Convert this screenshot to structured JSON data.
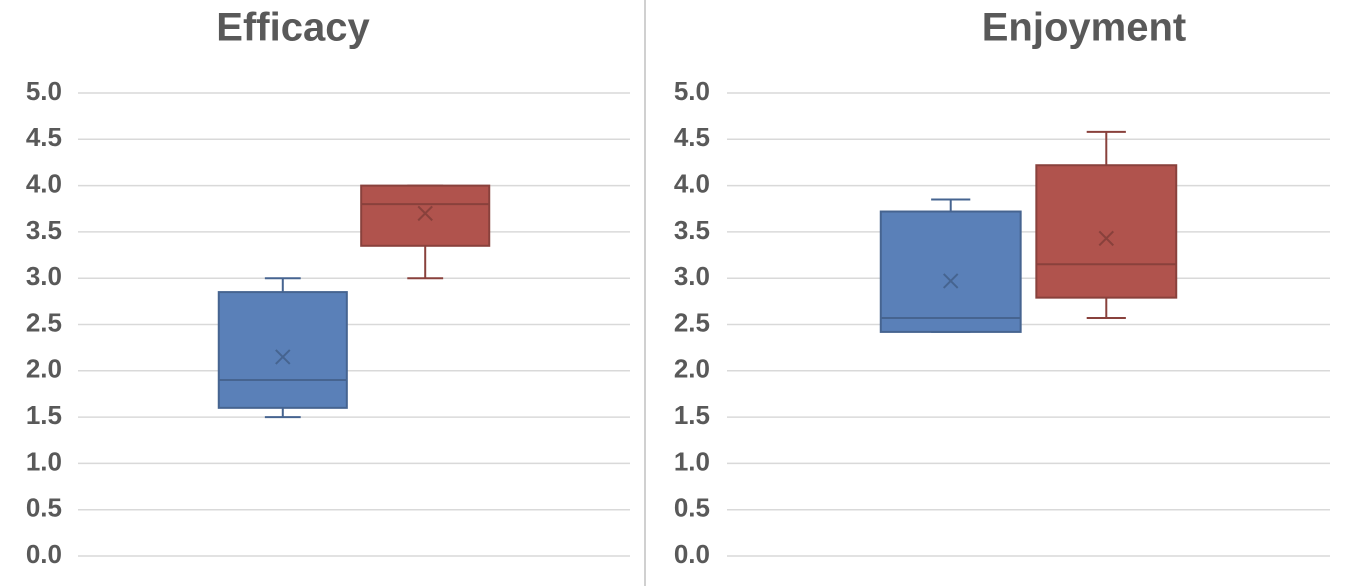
{
  "chart_data": [
    {
      "type": "box",
      "title": "Efficacy",
      "ylim": [
        0,
        5
      ],
      "grid": true,
      "yticks": [
        {
          "value": 0,
          "label": "0.0"
        },
        0.5,
        {
          "value": 1,
          "label": "1.0"
        },
        1.5,
        {
          "value": 2,
          "label": "2.0"
        },
        2.5,
        {
          "value": 3,
          "label": "3.0"
        },
        3.5,
        {
          "value": 4,
          "label": "4.0"
        },
        4.5,
        {
          "value": 5,
          "label": "5.0"
        }
      ],
      "series": [
        {
          "color": "#5a80b8",
          "min": 1.5,
          "q1": 1.6,
          "median": 1.9,
          "q3": 2.85,
          "max": 3.0,
          "mean": 2.15
        },
        {
          "color": "#b0534d",
          "min": 3.0,
          "q1": 3.35,
          "median": 3.8,
          "q3": 4.0,
          "max": 4.0,
          "mean": 3.7
        }
      ]
    },
    {
      "type": "box",
      "title": "Enjoyment",
      "ylim": [
        0,
        5
      ],
      "grid": true,
      "yticks": [
        {
          "value": 0,
          "label": "0.0"
        },
        0.5,
        {
          "value": 1,
          "label": "1.0"
        },
        1.5,
        {
          "value": 2,
          "label": "2.0"
        },
        2.5,
        {
          "value": 3,
          "label": "3.0"
        },
        3.5,
        {
          "value": 4,
          "label": "4.0"
        },
        4.5,
        {
          "value": 5,
          "label": "5.0"
        }
      ],
      "series": [
        {
          "color": "#5a80b8",
          "min": 2.42,
          "q1": 2.42,
          "median": 2.57,
          "q3": 3.72,
          "max": 3.85,
          "mean": 2.97
        },
        {
          "color": "#b0534d",
          "min": 2.57,
          "q1": 2.79,
          "median": 3.15,
          "q3": 4.22,
          "max": 4.58,
          "mean": 3.43
        }
      ]
    }
  ]
}
